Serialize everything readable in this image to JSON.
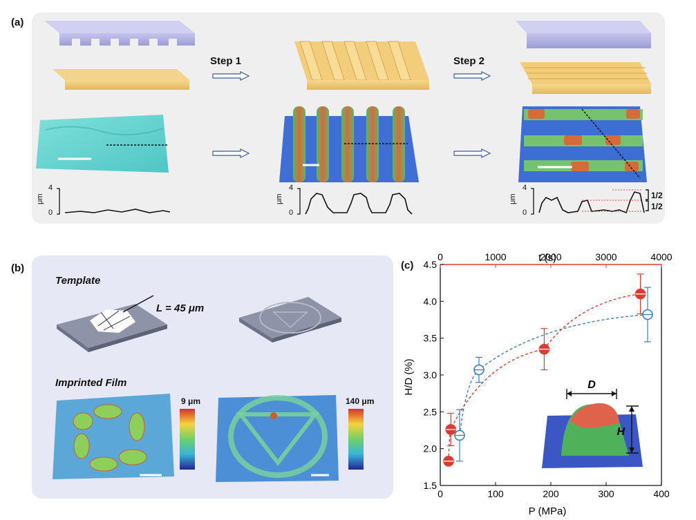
{
  "panel_labels": {
    "a": "(a)",
    "b": "(b)",
    "c": "(c)"
  },
  "panel_a": {
    "step1": "Step 1",
    "step2": "Step 2",
    "profile_unit": "μm",
    "profile_tick_top": "4",
    "profile_tick_bottom": "0",
    "ratio_top": "1/2",
    "ratio_bottom": "1/2"
  },
  "panel_b": {
    "template_label": "Template",
    "length_label": "L = 45 μm",
    "imprinted_label": "Imprinted Film",
    "scale_left_max": "9 μm",
    "scale_right_max": "140 μm"
  },
  "chart_data": {
    "type": "scatter",
    "xlabel": "P (MPa)",
    "x2label": "t (s)",
    "ylabel": "H/D (%)",
    "xlim": [
      0,
      400
    ],
    "x2lim": [
      0,
      4000
    ],
    "ylim": [
      1.5,
      4.5
    ],
    "xticks": [
      0,
      100,
      200,
      300,
      400
    ],
    "x2ticks": [
      0,
      1000,
      2000,
      3000,
      4000
    ],
    "yticks": [
      1.5,
      2.0,
      2.5,
      3.0,
      3.5,
      4.0,
      4.5
    ],
    "series": [
      {
        "color": "#e03a2f",
        "axis": "bottom",
        "points": [
          {
            "x": 15,
            "y": 1.83,
            "err": 0.05
          },
          {
            "x": 19,
            "y": 2.26,
            "err": 0.22
          },
          {
            "x": 188,
            "y": 3.35,
            "err": 0.28
          },
          {
            "x": 362,
            "y": 4.1,
            "err": 0.27
          }
        ]
      },
      {
        "color": "#3c7fbf",
        "axis": "top",
        "points": [
          {
            "x": 350,
            "y": 2.18,
            "err": 0.35
          },
          {
            "x": 700,
            "y": 3.07,
            "err": 0.17
          },
          {
            "x": 3750,
            "y": 3.82,
            "err": 0.37
          }
        ]
      }
    ],
    "inset_labels": {
      "D": "D",
      "H": "H"
    }
  }
}
